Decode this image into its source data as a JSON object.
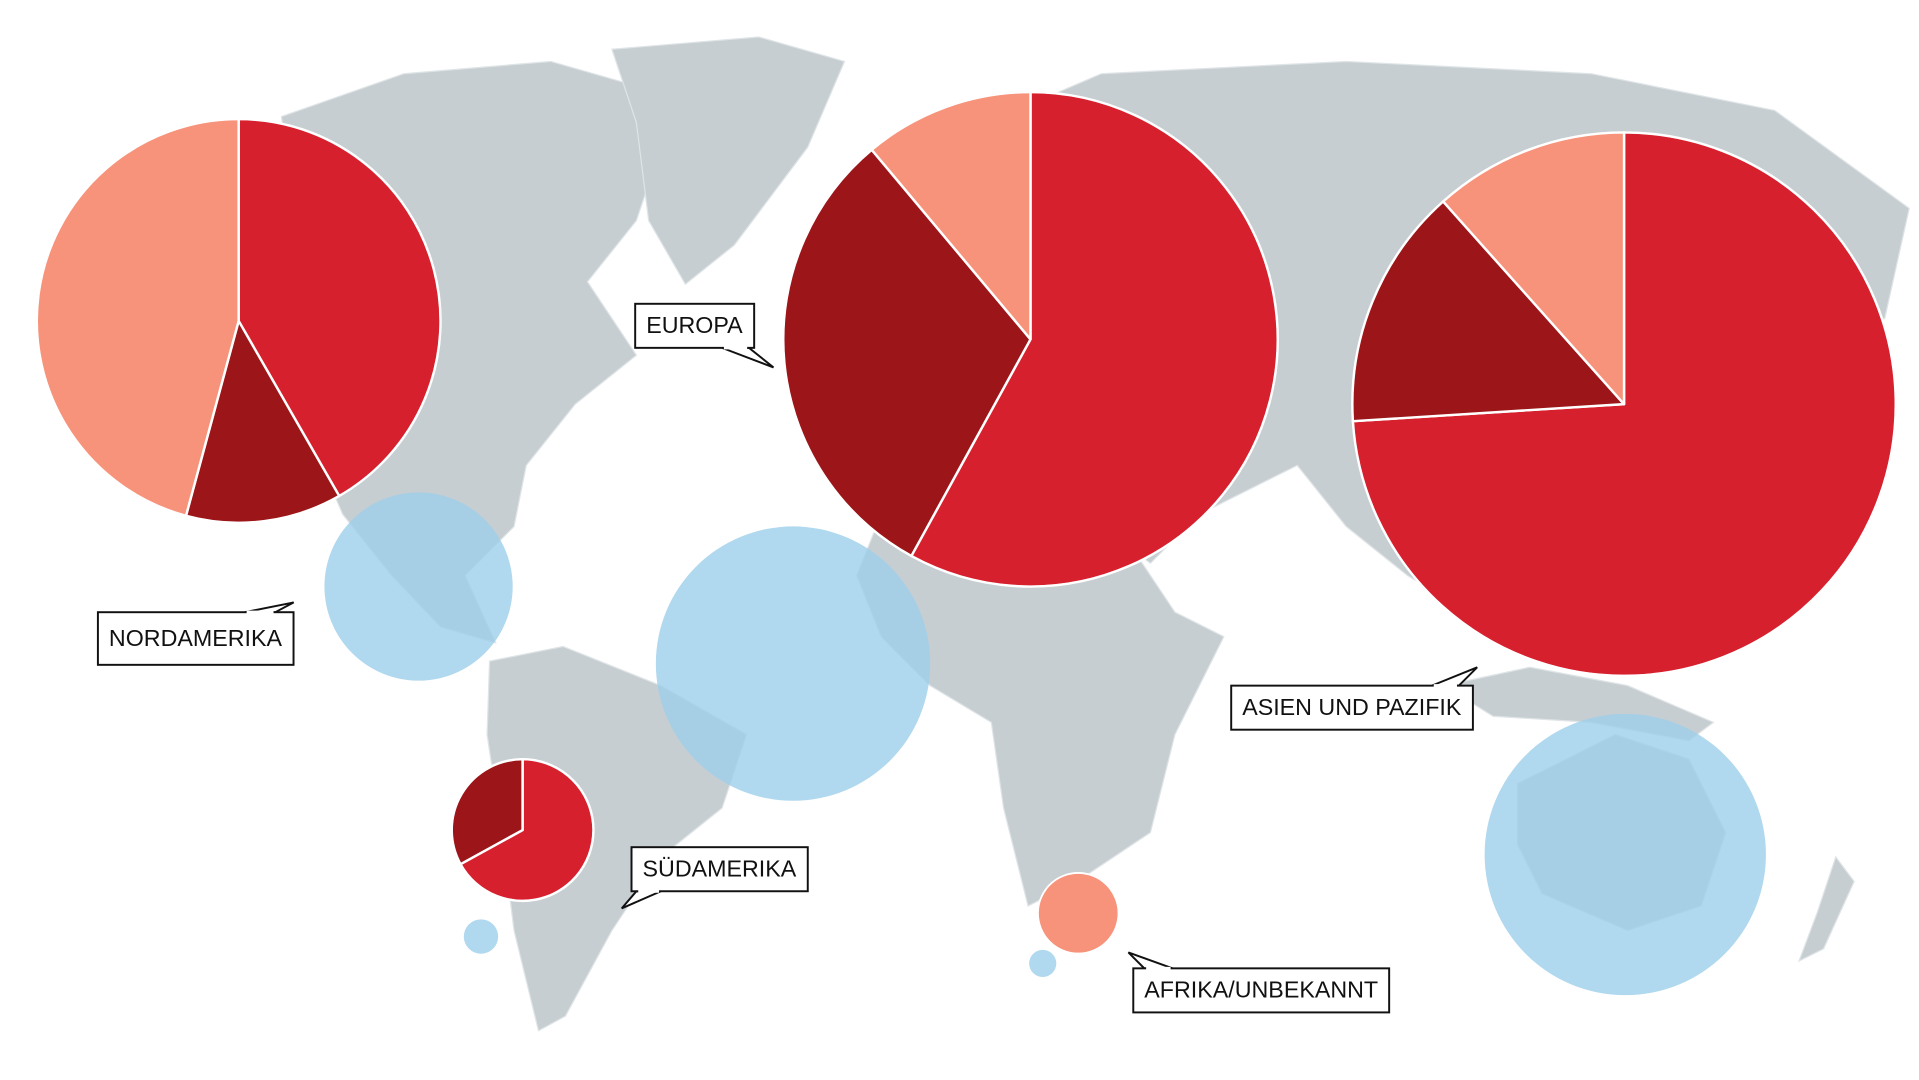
{
  "chart_data": {
    "type": "pie-map",
    "regions": [
      {
        "label": "NORDAMERIKA",
        "values": [
          41.7,
          12.5,
          45.8
        ],
        "colors": [
          "#d7202e",
          "#9b1519",
          "#f7937b"
        ],
        "size": 55.2,
        "circle": 12.0
      },
      {
        "label": "EUROPA",
        "values": [
          58,
          30.9,
          11.1
        ],
        "colors": [
          "#d7202e",
          "#9b1519",
          "#f7937b"
        ],
        "size": 82.8,
        "circle": 25.5
      },
      {
        "label": "ASIEN UND PAZIFIK",
        "values": [
          74,
          14.4,
          11.6
        ],
        "colors": [
          "#d7202e",
          "#9b1519",
          "#f7937b"
        ],
        "size": 100,
        "circle": 26.8
      },
      {
        "label": "SÜDAMERIKA",
        "values": [
          67,
          33
        ],
        "colors": [
          "#d7202e",
          "#9b1519"
        ],
        "size": 6.8,
        "circle": 0.4
      },
      {
        "label": "AFRIKA/UNBEKANNT",
        "values": [
          100
        ],
        "colors": [
          "#f7937b"
        ],
        "size": 2.2,
        "circle": 0.25
      }
    ],
    "circle_color": "#9fcfea"
  }
}
